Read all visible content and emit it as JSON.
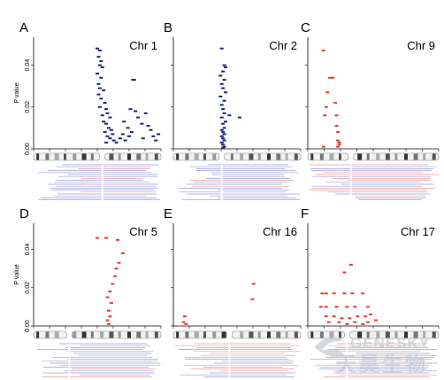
{
  "y_axis_label": "P value",
  "y_ticks": [
    "0.00",
    "0.02",
    "0.04"
  ],
  "colors": {
    "blue": "#1a237e",
    "red": "#e53935",
    "axis": "#000000",
    "track_blue": "#8c8cd8",
    "track_red": "#e88a8a",
    "watermark": "#c5ccd6"
  },
  "watermark": {
    "latin": "GENESKY",
    "chinese": "天昊生物",
    "logo_icon": "swirl-logo-icon"
  },
  "chart_data": [
    {
      "type": "scatter",
      "panel_label": "A",
      "title": "Chr 1",
      "ylim": [
        0,
        0.05
      ],
      "color": "blue",
      "points": [
        [
          0.5,
          0.048
        ],
        [
          0.52,
          0.047
        ],
        [
          0.51,
          0.044
        ],
        [
          0.53,
          0.042
        ],
        [
          0.52,
          0.04
        ],
        [
          0.54,
          0.039
        ],
        [
          0.5,
          0.036
        ],
        [
          0.53,
          0.034
        ],
        [
          0.51,
          0.031
        ],
        [
          0.52,
          0.029
        ],
        [
          0.55,
          0.028
        ],
        [
          0.51,
          0.026
        ],
        [
          0.53,
          0.024
        ],
        [
          0.56,
          0.022
        ],
        [
          0.52,
          0.02
        ],
        [
          0.57,
          0.019
        ],
        [
          0.58,
          0.017
        ],
        [
          0.54,
          0.016
        ],
        [
          0.6,
          0.015
        ],
        [
          0.55,
          0.013
        ],
        [
          0.57,
          0.012
        ],
        [
          0.59,
          0.01
        ],
        [
          0.61,
          0.009
        ],
        [
          0.56,
          0.008
        ],
        [
          0.62,
          0.007
        ],
        [
          0.58,
          0.006
        ],
        [
          0.6,
          0.005
        ],
        [
          0.63,
          0.004
        ],
        [
          0.57,
          0.003
        ],
        [
          0.65,
          0.003
        ],
        [
          0.68,
          0.005
        ],
        [
          0.7,
          0.007
        ],
        [
          0.72,
          0.004
        ],
        [
          0.75,
          0.006
        ],
        [
          0.78,
          0.033
        ],
        [
          0.79,
          0.033
        ],
        [
          0.8,
          0.018
        ],
        [
          0.76,
          0.019
        ],
        [
          0.82,
          0.015
        ],
        [
          0.85,
          0.012
        ],
        [
          0.88,
          0.017
        ],
        [
          0.9,
          0.011
        ],
        [
          0.92,
          0.009
        ],
        [
          0.94,
          0.006
        ],
        [
          0.96,
          0.004
        ],
        [
          0.74,
          0.01
        ],
        [
          0.77,
          0.008
        ],
        [
          0.71,
          0.013
        ],
        [
          0.86,
          0.005
        ],
        [
          0.98,
          0.007
        ]
      ]
    },
    {
      "type": "scatter",
      "panel_label": "B",
      "title": "Chr 2",
      "ylim": [
        0,
        0.05
      ],
      "color": "blue",
      "points": [
        [
          0.38,
          0.048
        ],
        [
          0.4,
          0.04
        ],
        [
          0.41,
          0.039
        ],
        [
          0.39,
          0.037
        ],
        [
          0.37,
          0.035
        ],
        [
          0.4,
          0.033
        ],
        [
          0.38,
          0.031
        ],
        [
          0.39,
          0.029
        ],
        [
          0.41,
          0.027
        ],
        [
          0.37,
          0.025
        ],
        [
          0.4,
          0.023
        ],
        [
          0.38,
          0.021
        ],
        [
          0.39,
          0.019
        ],
        [
          0.4,
          0.017
        ],
        [
          0.38,
          0.015
        ],
        [
          0.41,
          0.013
        ],
        [
          0.39,
          0.012
        ],
        [
          0.4,
          0.01
        ],
        [
          0.38,
          0.009
        ],
        [
          0.39,
          0.008
        ],
        [
          0.4,
          0.007
        ],
        [
          0.38,
          0.006
        ],
        [
          0.39,
          0.005
        ],
        [
          0.4,
          0.004
        ],
        [
          0.38,
          0.003
        ],
        [
          0.39,
          0.002
        ],
        [
          0.4,
          0.001
        ],
        [
          0.39,
          0.0005
        ],
        [
          0.52,
          0.015
        ],
        [
          0.44,
          0.016
        ]
      ]
    },
    {
      "type": "scatter",
      "panel_label": "C",
      "title": "Chr 9",
      "ylim": [
        0,
        0.05
      ],
      "color": "red",
      "points": [
        [
          0.12,
          0.047
        ],
        [
          0.17,
          0.034
        ],
        [
          0.19,
          0.034
        ],
        [
          0.15,
          0.027
        ],
        [
          0.14,
          0.02
        ],
        [
          0.13,
          0.016
        ],
        [
          0.21,
          0.022
        ],
        [
          0.22,
          0.016
        ],
        [
          0.22,
          0.011
        ],
        [
          0.23,
          0.008
        ],
        [
          0.23,
          0.004
        ],
        [
          0.24,
          0.002
        ],
        [
          0.23,
          0.001
        ],
        [
          0.12,
          0.001
        ],
        [
          0.24,
          0.003
        ]
      ]
    },
    {
      "type": "scatter",
      "panel_label": "D",
      "title": "Chr 5",
      "ylim": [
        0,
        0.05
      ],
      "color": "red",
      "points": [
        [
          0.5,
          0.046
        ],
        [
          0.57,
          0.046
        ],
        [
          0.66,
          0.045
        ],
        [
          0.7,
          0.038
        ],
        [
          0.67,
          0.033
        ],
        [
          0.65,
          0.03
        ],
        [
          0.64,
          0.026
        ],
        [
          0.62,
          0.022
        ],
        [
          0.6,
          0.018
        ],
        [
          0.58,
          0.015
        ],
        [
          0.61,
          0.012
        ],
        [
          0.59,
          0.008
        ],
        [
          0.6,
          0.005
        ],
        [
          0.58,
          0.003
        ],
        [
          0.59,
          0.001
        ]
      ]
    },
    {
      "type": "scatter",
      "panel_label": "E",
      "title": "Chr 16",
      "ylim": [
        0,
        0.05
      ],
      "color": "red",
      "points": [
        [
          0.09,
          0.005
        ],
        [
          0.08,
          0.002
        ],
        [
          0.1,
          0.001
        ],
        [
          0.63,
          0.022
        ],
        [
          0.62,
          0.014
        ]
      ]
    },
    {
      "type": "scatter",
      "panel_label": "F",
      "title": "Chr 17",
      "ylim": [
        0,
        0.05
      ],
      "color": "red",
      "points": [
        [
          0.33,
          0.032
        ],
        [
          0.28,
          0.028
        ],
        [
          0.11,
          0.017
        ],
        [
          0.14,
          0.017
        ],
        [
          0.2,
          0.017
        ],
        [
          0.28,
          0.017
        ],
        [
          0.34,
          0.017
        ],
        [
          0.42,
          0.017
        ],
        [
          0.1,
          0.01
        ],
        [
          0.14,
          0.01
        ],
        [
          0.22,
          0.01
        ],
        [
          0.3,
          0.01
        ],
        [
          0.36,
          0.01
        ],
        [
          0.46,
          0.01
        ],
        [
          0.14,
          0.005
        ],
        [
          0.2,
          0.005
        ],
        [
          0.26,
          0.004
        ],
        [
          0.32,
          0.004
        ],
        [
          0.38,
          0.005
        ],
        [
          0.44,
          0.005
        ],
        [
          0.48,
          0.006
        ],
        [
          0.16,
          0.002
        ],
        [
          0.24,
          0.002
        ],
        [
          0.3,
          0.001
        ],
        [
          0.36,
          0.002
        ],
        [
          0.42,
          0.001
        ],
        [
          0.46,
          0.002
        ],
        [
          0.52,
          0.003
        ]
      ]
    }
  ]
}
